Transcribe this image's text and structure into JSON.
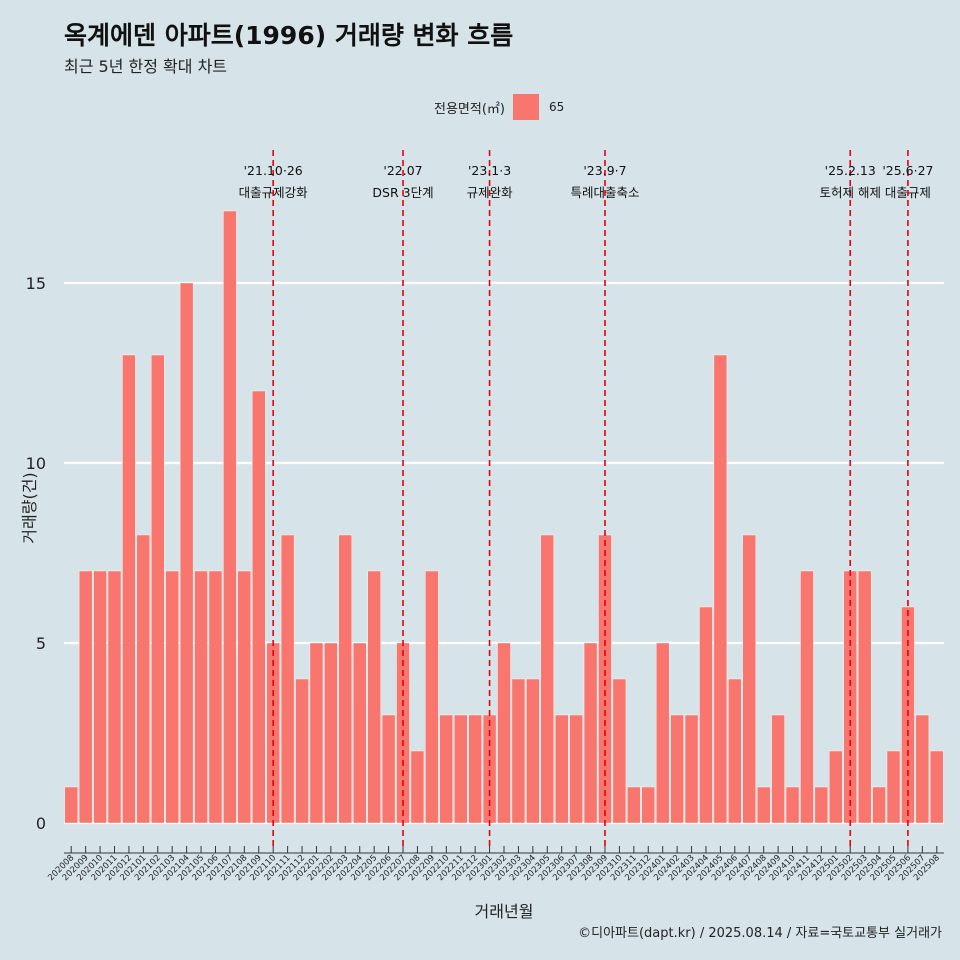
{
  "title": "옥계에덴 아파트(1996) 거래량 변화 흐름",
  "subtitle": "최근 5년 한정 확대 차트",
  "caption": "©디아파트(dapt.kr) / 2025.08.14 / 자료=국토교통부 실거래가",
  "legend": {
    "title": "전용면적(㎡)",
    "label": "65"
  },
  "colors": {
    "bar": "#f8766d",
    "background": "#d6e4ea",
    "grid": "#ffffff",
    "event_line": "#e8000b"
  },
  "chart_data": {
    "type": "bar",
    "xlabel": "거래년월",
    "ylabel": "거래량(건)",
    "ylim": [
      0,
      17
    ],
    "y_ticks": [
      0,
      5,
      10,
      15
    ],
    "grid": true,
    "legend_position": "top",
    "categories": [
      "202008",
      "202009",
      "202010",
      "202011",
      "202012",
      "202101",
      "202102",
      "202103",
      "202104",
      "202105",
      "202106",
      "202107",
      "202108",
      "202109",
      "202110",
      "202111",
      "202112",
      "202201",
      "202202",
      "202203",
      "202204",
      "202205",
      "202206",
      "202207",
      "202208",
      "202209",
      "202210",
      "202211",
      "202212",
      "202301",
      "202302",
      "202303",
      "202304",
      "202305",
      "202306",
      "202307",
      "202308",
      "202309",
      "202310",
      "202311",
      "202312",
      "202401",
      "202402",
      "202403",
      "202404",
      "202405",
      "202406",
      "202407",
      "202408",
      "202409",
      "202410",
      "202411",
      "202412",
      "202501",
      "202502",
      "202503",
      "202504",
      "202505",
      "202506",
      "202507",
      "202508"
    ],
    "series": [
      {
        "name": "65",
        "values": [
          1,
          7,
          7,
          7,
          13,
          8,
          13,
          7,
          15,
          7,
          7,
          17,
          7,
          12,
          5,
          8,
          4,
          5,
          5,
          8,
          5,
          7,
          3,
          5,
          2,
          7,
          3,
          3,
          3,
          3,
          5,
          4,
          4,
          8,
          3,
          3,
          5,
          8,
          4,
          1,
          1,
          5,
          3,
          3,
          6,
          13,
          4,
          8,
          1,
          3,
          1,
          7,
          1,
          2,
          7,
          7,
          1,
          2,
          6,
          3,
          2
        ]
      }
    ],
    "annotations": [
      {
        "date_label": "'21.10·26",
        "text": "대출규제강화",
        "x": "202110"
      },
      {
        "date_label": "'22.07",
        "text": "DSR 3단계",
        "x": "202207"
      },
      {
        "date_label": "'23.1·3",
        "text": "규제완화",
        "x": "202301"
      },
      {
        "date_label": "'23.9·7",
        "text": "특례대출축소",
        "x": "202309"
      },
      {
        "date_label": "'25.2.13",
        "text": "토허제 해제",
        "x": "202502"
      },
      {
        "date_label": "'25.6·27",
        "text": "대출규제",
        "x": "202506"
      }
    ]
  }
}
